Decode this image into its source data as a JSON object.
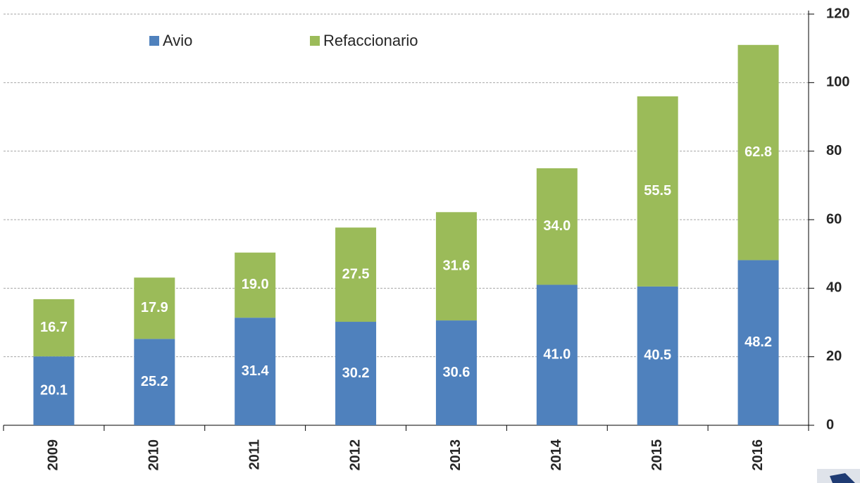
{
  "chart_data": {
    "type": "stacked_bar",
    "categories": [
      "2009",
      "2010",
      "2011",
      "2012",
      "2013",
      "2014",
      "2015",
      "2016"
    ],
    "series": [
      {
        "name": "Avio",
        "color": "#4f81bd",
        "values": [
          20.1,
          25.2,
          31.4,
          30.2,
          30.6,
          41.0,
          40.5,
          48.2
        ],
        "value_labels": [
          "20.1",
          "25.2",
          "31.4",
          "30.2",
          "30.6",
          "41.0",
          "40.5",
          "48.2"
        ]
      },
      {
        "name": "Refaccionario",
        "color": "#9bbb59",
        "values": [
          16.7,
          17.9,
          19.0,
          27.5,
          31.6,
          34.0,
          55.5,
          62.8
        ],
        "value_labels": [
          "16.7",
          "17.9",
          "19.0",
          "27.5",
          "31.6",
          "34.0",
          "55.5",
          "62.8"
        ]
      }
    ],
    "ylim": [
      0,
      120
    ],
    "yticks": [
      0,
      20,
      40,
      60,
      80,
      100,
      120
    ],
    "grid": true,
    "y_axis_side": "right",
    "legend": "top"
  }
}
